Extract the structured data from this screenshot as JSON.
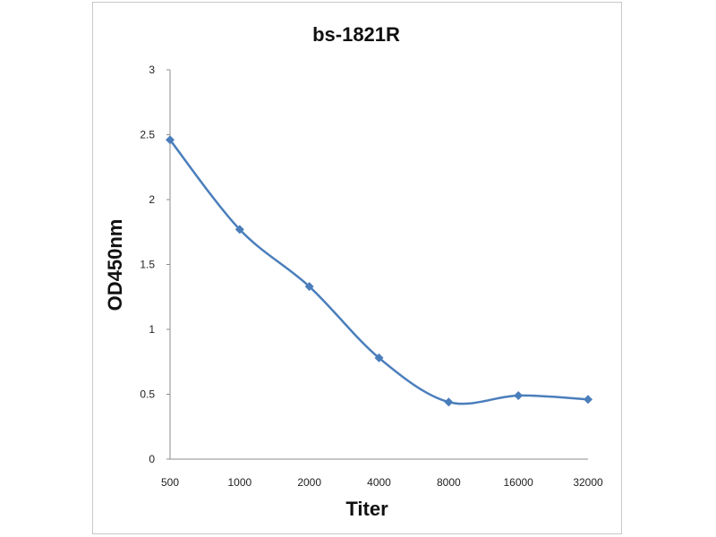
{
  "chart_data": {
    "type": "line",
    "title": "bs-1821R",
    "xlabel": "Titer",
    "ylabel": "OD450nm",
    "categories": [
      "500",
      "1000",
      "2000",
      "4000",
      "8000",
      "16000",
      "32000"
    ],
    "series": [
      {
        "values": [
          2.46,
          1.77,
          1.33,
          0.78,
          0.44,
          0.49,
          0.46
        ],
        "color": "#4a7ebb"
      }
    ],
    "ylim": [
      0,
      3
    ],
    "yticks": [
      "0",
      "0.5",
      "1",
      "1.5",
      "2",
      "2.5",
      "3"
    ],
    "grid": false,
    "legend": "none"
  }
}
